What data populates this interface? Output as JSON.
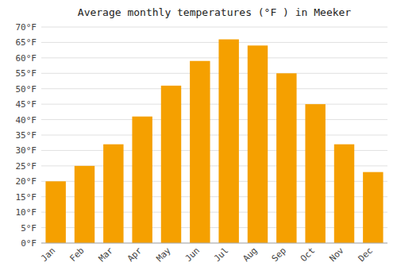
{
  "chart_data": {
    "type": "bar",
    "title": "Average monthly temperatures (°F ) in Meeker",
    "categories": [
      "Jan",
      "Feb",
      "Mar",
      "Apr",
      "May",
      "Jun",
      "Jul",
      "Aug",
      "Sep",
      "Oct",
      "Nov",
      "Dec"
    ],
    "values": [
      20,
      25,
      32,
      41,
      51,
      59,
      66,
      64,
      55,
      45,
      32,
      23
    ],
    "color": "#F5A000",
    "ylim": [
      0,
      70
    ],
    "yticks": [
      {
        "value": 0,
        "label": "0°F"
      },
      {
        "value": 5,
        "label": "5°F"
      },
      {
        "value": 10,
        "label": "10°F"
      },
      {
        "value": 15,
        "label": "15°F"
      },
      {
        "value": 20,
        "label": "20°F"
      },
      {
        "value": 25,
        "label": "25°F"
      },
      {
        "value": 30,
        "label": "30°F"
      },
      {
        "value": 35,
        "label": "35°F"
      },
      {
        "value": 40,
        "label": "40°F"
      },
      {
        "value": 45,
        "label": "45°F"
      },
      {
        "value": 50,
        "label": "50°F"
      },
      {
        "value": 55,
        "label": "55°F"
      },
      {
        "value": 60,
        "label": "60°F"
      },
      {
        "value": 65,
        "label": "65°F"
      },
      {
        "value": 70,
        "label": "70°F"
      }
    ],
    "grid": true
  }
}
